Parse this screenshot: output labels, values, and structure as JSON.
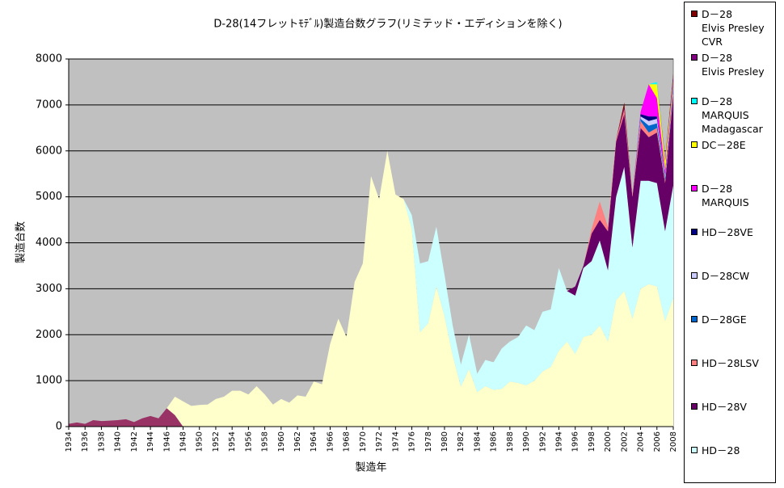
{
  "chart_data": {
    "type": "area",
    "title": "D-28(14フレットﾓﾃﾞﾙ)製造台数グラフ(リミテッド・エディションを除く)",
    "x_label": "製造年",
    "y_label": "製造台数",
    "x": [
      1934,
      1935,
      1936,
      1937,
      1938,
      1939,
      1940,
      1941,
      1942,
      1943,
      1944,
      1945,
      1946,
      1947,
      1948,
      1949,
      1950,
      1951,
      1952,
      1953,
      1954,
      1955,
      1956,
      1957,
      1958,
      1959,
      1960,
      1961,
      1962,
      1963,
      1964,
      1965,
      1966,
      1967,
      1968,
      1969,
      1970,
      1971,
      1972,
      1973,
      1974,
      1975,
      1976,
      1977,
      1978,
      1979,
      1980,
      1981,
      1982,
      1983,
      1984,
      1985,
      1986,
      1987,
      1988,
      1989,
      1990,
      1991,
      1992,
      1993,
      1994,
      1995,
      1996,
      1997,
      1998,
      1999,
      2000,
      2001,
      2002,
      2003,
      2004,
      2005,
      2006,
      2007,
      2008
    ],
    "xlim": [
      1934,
      2008
    ],
    "xticks": [
      1934,
      1936,
      1938,
      1940,
      1942,
      1944,
      1946,
      1948,
      1950,
      1952,
      1954,
      1956,
      1958,
      1960,
      1962,
      1964,
      1966,
      1968,
      1970,
      1972,
      1974,
      1976,
      1978,
      1980,
      1982,
      1984,
      1986,
      1988,
      1990,
      1992,
      1994,
      1996,
      1998,
      2000,
      2002,
      2004,
      2006,
      2008
    ],
    "ylim": [
      0,
      8000
    ],
    "yticks": [
      0,
      1000,
      2000,
      3000,
      4000,
      5000,
      6000,
      7000,
      8000
    ],
    "grid": true,
    "stacked": true,
    "series": [
      {
        "color": "#993366",
        "values": [
          60,
          90,
          60,
          140,
          120,
          130,
          140,
          160,
          100,
          180,
          230,
          180,
          400,
          250,
          0,
          null,
          null,
          null,
          null,
          null,
          null,
          null,
          null,
          null,
          null,
          null,
          null,
          null,
          null,
          null,
          null,
          null,
          null,
          null,
          null,
          null,
          null,
          null,
          null,
          null,
          null,
          null,
          null,
          null,
          null,
          null,
          null,
          null,
          null,
          null,
          null,
          null,
          null,
          null,
          null,
          null,
          null,
          null,
          null,
          null,
          null,
          null,
          null,
          null,
          null,
          null,
          null,
          null,
          null,
          null,
          null,
          null,
          null,
          null,
          null
        ]
      },
      {
        "color": "#ffffcc",
        "values": [
          null,
          null,
          null,
          null,
          null,
          null,
          null,
          null,
          null,
          null,
          null,
          null,
          0,
          400,
          550,
          450,
          470,
          480,
          600,
          650,
          780,
          780,
          700,
          880,
          700,
          480,
          600,
          520,
          680,
          650,
          980,
          920,
          1800,
          2350,
          1950,
          3150,
          3550,
          5450,
          4950,
          6000,
          5050,
          4950,
          4300,
          2050,
          2250,
          3050,
          2400,
          1550,
          870,
          1250,
          750,
          880,
          800,
          820,
          980,
          950,
          900,
          1000,
          1200,
          1300,
          1650,
          1850,
          1580,
          1950,
          2000,
          2200,
          1850,
          2750,
          2950,
          2350,
          3000,
          3100,
          3050,
          2300,
          2800
        ]
      },
      {
        "name": "HD－28",
        "color": "#ccffff",
        "values": [
          null,
          null,
          null,
          null,
          null,
          null,
          null,
          null,
          null,
          null,
          null,
          null,
          null,
          null,
          null,
          null,
          null,
          null,
          null,
          null,
          null,
          null,
          null,
          null,
          null,
          null,
          null,
          null,
          null,
          null,
          null,
          null,
          null,
          null,
          null,
          null,
          null,
          null,
          null,
          null,
          null,
          0,
          300,
          1500,
          1350,
          1300,
          900,
          650,
          480,
          750,
          400,
          570,
          600,
          880,
          870,
          1000,
          1300,
          1100,
          1300,
          1250,
          1800,
          1100,
          1270,
          1500,
          1600,
          1850,
          1550,
          2250,
          2700,
          1550,
          2350,
          2250,
          2250,
          1950,
          2450
        ]
      },
      {
        "name": "HD－28V",
        "color": "#660066",
        "values": [
          null,
          null,
          null,
          null,
          null,
          null,
          null,
          null,
          null,
          null,
          null,
          null,
          null,
          null,
          null,
          null,
          null,
          null,
          null,
          null,
          null,
          null,
          null,
          null,
          null,
          null,
          null,
          null,
          null,
          null,
          null,
          null,
          null,
          null,
          null,
          null,
          null,
          null,
          null,
          null,
          null,
          null,
          null,
          null,
          null,
          null,
          null,
          null,
          null,
          null,
          null,
          null,
          null,
          null,
          null,
          null,
          null,
          null,
          null,
          null,
          null,
          0,
          200,
          50,
          600,
          450,
          850,
          1200,
          1150,
          1100,
          1150,
          950,
          1100,
          1050,
          1950
        ]
      },
      {
        "name": "HD－28LSV",
        "color": "#ff8080",
        "values": [
          null,
          null,
          null,
          null,
          null,
          null,
          null,
          null,
          null,
          null,
          null,
          null,
          null,
          null,
          null,
          null,
          null,
          null,
          null,
          null,
          null,
          null,
          null,
          null,
          null,
          null,
          null,
          null,
          null,
          null,
          null,
          null,
          null,
          null,
          null,
          null,
          null,
          null,
          null,
          null,
          null,
          null,
          null,
          null,
          null,
          null,
          null,
          null,
          null,
          null,
          null,
          null,
          null,
          null,
          null,
          null,
          null,
          null,
          null,
          null,
          null,
          null,
          null,
          0,
          100,
          400,
          100,
          50,
          100,
          50,
          150,
          100,
          100,
          50,
          100
        ]
      },
      {
        "name": "D－28GE",
        "color": "#0066cc",
        "values": [
          null,
          null,
          null,
          null,
          null,
          null,
          null,
          null,
          null,
          null,
          null,
          null,
          null,
          null,
          null,
          null,
          null,
          null,
          null,
          null,
          null,
          null,
          null,
          null,
          null,
          null,
          null,
          null,
          null,
          null,
          null,
          null,
          null,
          null,
          null,
          null,
          null,
          null,
          null,
          null,
          null,
          null,
          null,
          null,
          null,
          null,
          null,
          null,
          null,
          null,
          null,
          null,
          null,
          null,
          null,
          null,
          null,
          null,
          null,
          null,
          null,
          null,
          null,
          null,
          null,
          null,
          null,
          null,
          null,
          0,
          50,
          150,
          100,
          50,
          50
        ]
      },
      {
        "name": "D－28CW",
        "color": "#ccccff",
        "values": [
          null,
          null,
          null,
          null,
          null,
          null,
          null,
          null,
          null,
          null,
          null,
          null,
          null,
          null,
          null,
          null,
          null,
          null,
          null,
          null,
          null,
          null,
          null,
          null,
          null,
          null,
          null,
          null,
          null,
          null,
          null,
          null,
          null,
          null,
          null,
          null,
          null,
          null,
          null,
          null,
          null,
          null,
          null,
          null,
          null,
          null,
          null,
          null,
          null,
          null,
          null,
          null,
          null,
          null,
          null,
          null,
          null,
          null,
          null,
          null,
          null,
          null,
          null,
          null,
          null,
          null,
          null,
          null,
          null,
          0,
          50,
          100,
          100,
          50,
          50
        ]
      },
      {
        "name": "HD－28VE",
        "color": "#000080",
        "values": [
          null,
          null,
          null,
          null,
          null,
          null,
          null,
          null,
          null,
          null,
          null,
          null,
          null,
          null,
          null,
          null,
          null,
          null,
          null,
          null,
          null,
          null,
          null,
          null,
          null,
          null,
          null,
          null,
          null,
          null,
          null,
          null,
          null,
          null,
          null,
          null,
          null,
          null,
          null,
          null,
          null,
          null,
          null,
          null,
          null,
          null,
          null,
          null,
          null,
          null,
          null,
          null,
          null,
          null,
          null,
          null,
          null,
          null,
          null,
          null,
          null,
          null,
          null,
          null,
          null,
          null,
          null,
          null,
          null,
          0,
          50,
          100,
          50,
          30,
          30
        ]
      },
      {
        "name": "D－28\nMARQUIS",
        "color": "#ff00ff",
        "values": [
          null,
          null,
          null,
          null,
          null,
          null,
          null,
          null,
          null,
          null,
          null,
          null,
          null,
          null,
          null,
          null,
          null,
          null,
          null,
          null,
          null,
          null,
          null,
          null,
          null,
          null,
          null,
          null,
          null,
          null,
          null,
          null,
          null,
          null,
          null,
          null,
          null,
          null,
          null,
          null,
          null,
          null,
          null,
          null,
          null,
          null,
          null,
          null,
          null,
          null,
          null,
          null,
          null,
          null,
          null,
          null,
          null,
          null,
          null,
          null,
          null,
          null,
          null,
          null,
          null,
          null,
          null,
          null,
          null,
          0,
          50,
          700,
          400,
          100,
          50
        ]
      },
      {
        "name": "DC－28E",
        "color": "#ffff00",
        "values": [
          null,
          null,
          null,
          null,
          null,
          null,
          null,
          null,
          null,
          null,
          null,
          null,
          null,
          null,
          null,
          null,
          null,
          null,
          null,
          null,
          null,
          null,
          null,
          null,
          null,
          null,
          null,
          null,
          null,
          null,
          null,
          null,
          null,
          null,
          null,
          null,
          null,
          null,
          null,
          null,
          null,
          null,
          null,
          null,
          null,
          null,
          null,
          null,
          null,
          null,
          null,
          null,
          null,
          null,
          null,
          null,
          null,
          null,
          null,
          null,
          null,
          null,
          null,
          null,
          null,
          null,
          null,
          null,
          null,
          0,
          0,
          0,
          300,
          200,
          50
        ]
      },
      {
        "name": "D－28\nMARQUIS\nMadagascar",
        "color": "#00ffff",
        "values": [
          null,
          null,
          null,
          null,
          null,
          null,
          null,
          null,
          null,
          null,
          null,
          null,
          null,
          null,
          null,
          null,
          null,
          null,
          null,
          null,
          null,
          null,
          null,
          null,
          null,
          null,
          null,
          null,
          null,
          null,
          null,
          null,
          null,
          null,
          null,
          null,
          null,
          null,
          null,
          null,
          null,
          null,
          null,
          null,
          null,
          null,
          null,
          null,
          null,
          null,
          null,
          null,
          null,
          null,
          null,
          null,
          null,
          null,
          null,
          null,
          null,
          null,
          null,
          null,
          null,
          null,
          null,
          null,
          null,
          0,
          0,
          0,
          50,
          0,
          0
        ]
      },
      {
        "name": "D－28\nElvis Presley",
        "color": "#800080",
        "values": [
          null,
          null,
          null,
          null,
          null,
          null,
          null,
          null,
          null,
          null,
          null,
          null,
          null,
          null,
          null,
          null,
          null,
          null,
          null,
          null,
          null,
          null,
          null,
          null,
          null,
          null,
          null,
          null,
          null,
          null,
          null,
          null,
          null,
          null,
          null,
          null,
          null,
          null,
          null,
          null,
          null,
          null,
          null,
          null,
          null,
          null,
          null,
          null,
          null,
          null,
          null,
          null,
          null,
          null,
          null,
          null,
          null,
          null,
          null,
          null,
          null,
          null,
          null,
          null,
          null,
          null,
          null,
          0,
          50,
          0,
          0,
          0,
          0,
          50,
          100
        ]
      },
      {
        "name": "D－28\nElvis Presley\nCVR",
        "color": "#800000",
        "values": [
          null,
          null,
          null,
          null,
          null,
          null,
          null,
          null,
          null,
          null,
          null,
          null,
          null,
          null,
          null,
          null,
          null,
          null,
          null,
          null,
          null,
          null,
          null,
          null,
          null,
          null,
          null,
          null,
          null,
          null,
          null,
          null,
          null,
          null,
          null,
          null,
          null,
          null,
          null,
          null,
          null,
          null,
          null,
          null,
          null,
          null,
          null,
          null,
          null,
          null,
          null,
          null,
          null,
          null,
          null,
          null,
          null,
          null,
          null,
          null,
          null,
          null,
          null,
          null,
          null,
          null,
          null,
          0,
          100,
          0,
          0,
          0,
          0,
          0,
          50
        ]
      }
    ]
  }
}
